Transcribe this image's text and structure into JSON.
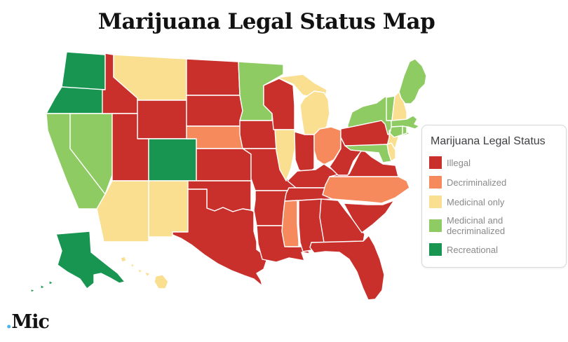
{
  "title": "Marijuana Legal Status Map",
  "logo": {
    "dot": ".",
    "text": "Mic",
    "dot_color": "#4ab6e8",
    "text_color": "#121212"
  },
  "legend": {
    "title": "Marijuana Legal Status",
    "items": [
      {
        "label": "Illegal",
        "color": "#c9302b"
      },
      {
        "label": "Decriminalized",
        "color": "#f68a5c"
      },
      {
        "label": "Medicinal only",
        "color": "#fadf90"
      },
      {
        "label": "Medicinal and decriminalized",
        "color": "#8fcb63"
      },
      {
        "label": "Recreational",
        "color": "#199552"
      }
    ]
  },
  "map": {
    "border_color": "#ffffff",
    "states": {
      "WA": "Recreational",
      "OR": "Recreational",
      "CA": "Medicinal and decriminalized",
      "NV": "Medicinal and decriminalized",
      "ID": "Illegal",
      "MT": "Medicinal only",
      "WY": "Illegal",
      "UT": "Illegal",
      "CO": "Recreational",
      "AZ": "Medicinal only",
      "NM": "Medicinal only",
      "ND": "Illegal",
      "SD": "Illegal",
      "NE": "Decriminalized",
      "KS": "Illegal",
      "OK": "Illegal",
      "TX": "Illegal",
      "MN": "Medicinal and decriminalized",
      "IA": "Illegal",
      "MO": "Illegal",
      "AR": "Illegal",
      "LA": "Illegal",
      "WI": "Illegal",
      "IL": "Medicinal only",
      "MI": "Medicinal only",
      "IN": "Illegal",
      "OH": "Decriminalized",
      "KY": "Illegal",
      "TN": "Illegal",
      "MS": "Decriminalized",
      "AL": "Illegal",
      "GA": "Illegal",
      "FL": "Illegal",
      "SC": "Illegal",
      "NC": "Decriminalized",
      "VA": "Illegal",
      "WV": "Illegal",
      "PA": "Illegal",
      "NY": "Medicinal and decriminalized",
      "NJ": "Medicinal only",
      "DE": "Medicinal only",
      "MD": "Medicinal and decriminalized",
      "VT": "Medicinal and decriminalized",
      "NH": "Medicinal only",
      "MA": "Medicinal and decriminalized",
      "CT": "Medicinal and decriminalized",
      "RI": "Medicinal and decriminalized",
      "ME": "Medicinal and decriminalized",
      "AK": "Recreational",
      "HI": "Medicinal only"
    }
  }
}
